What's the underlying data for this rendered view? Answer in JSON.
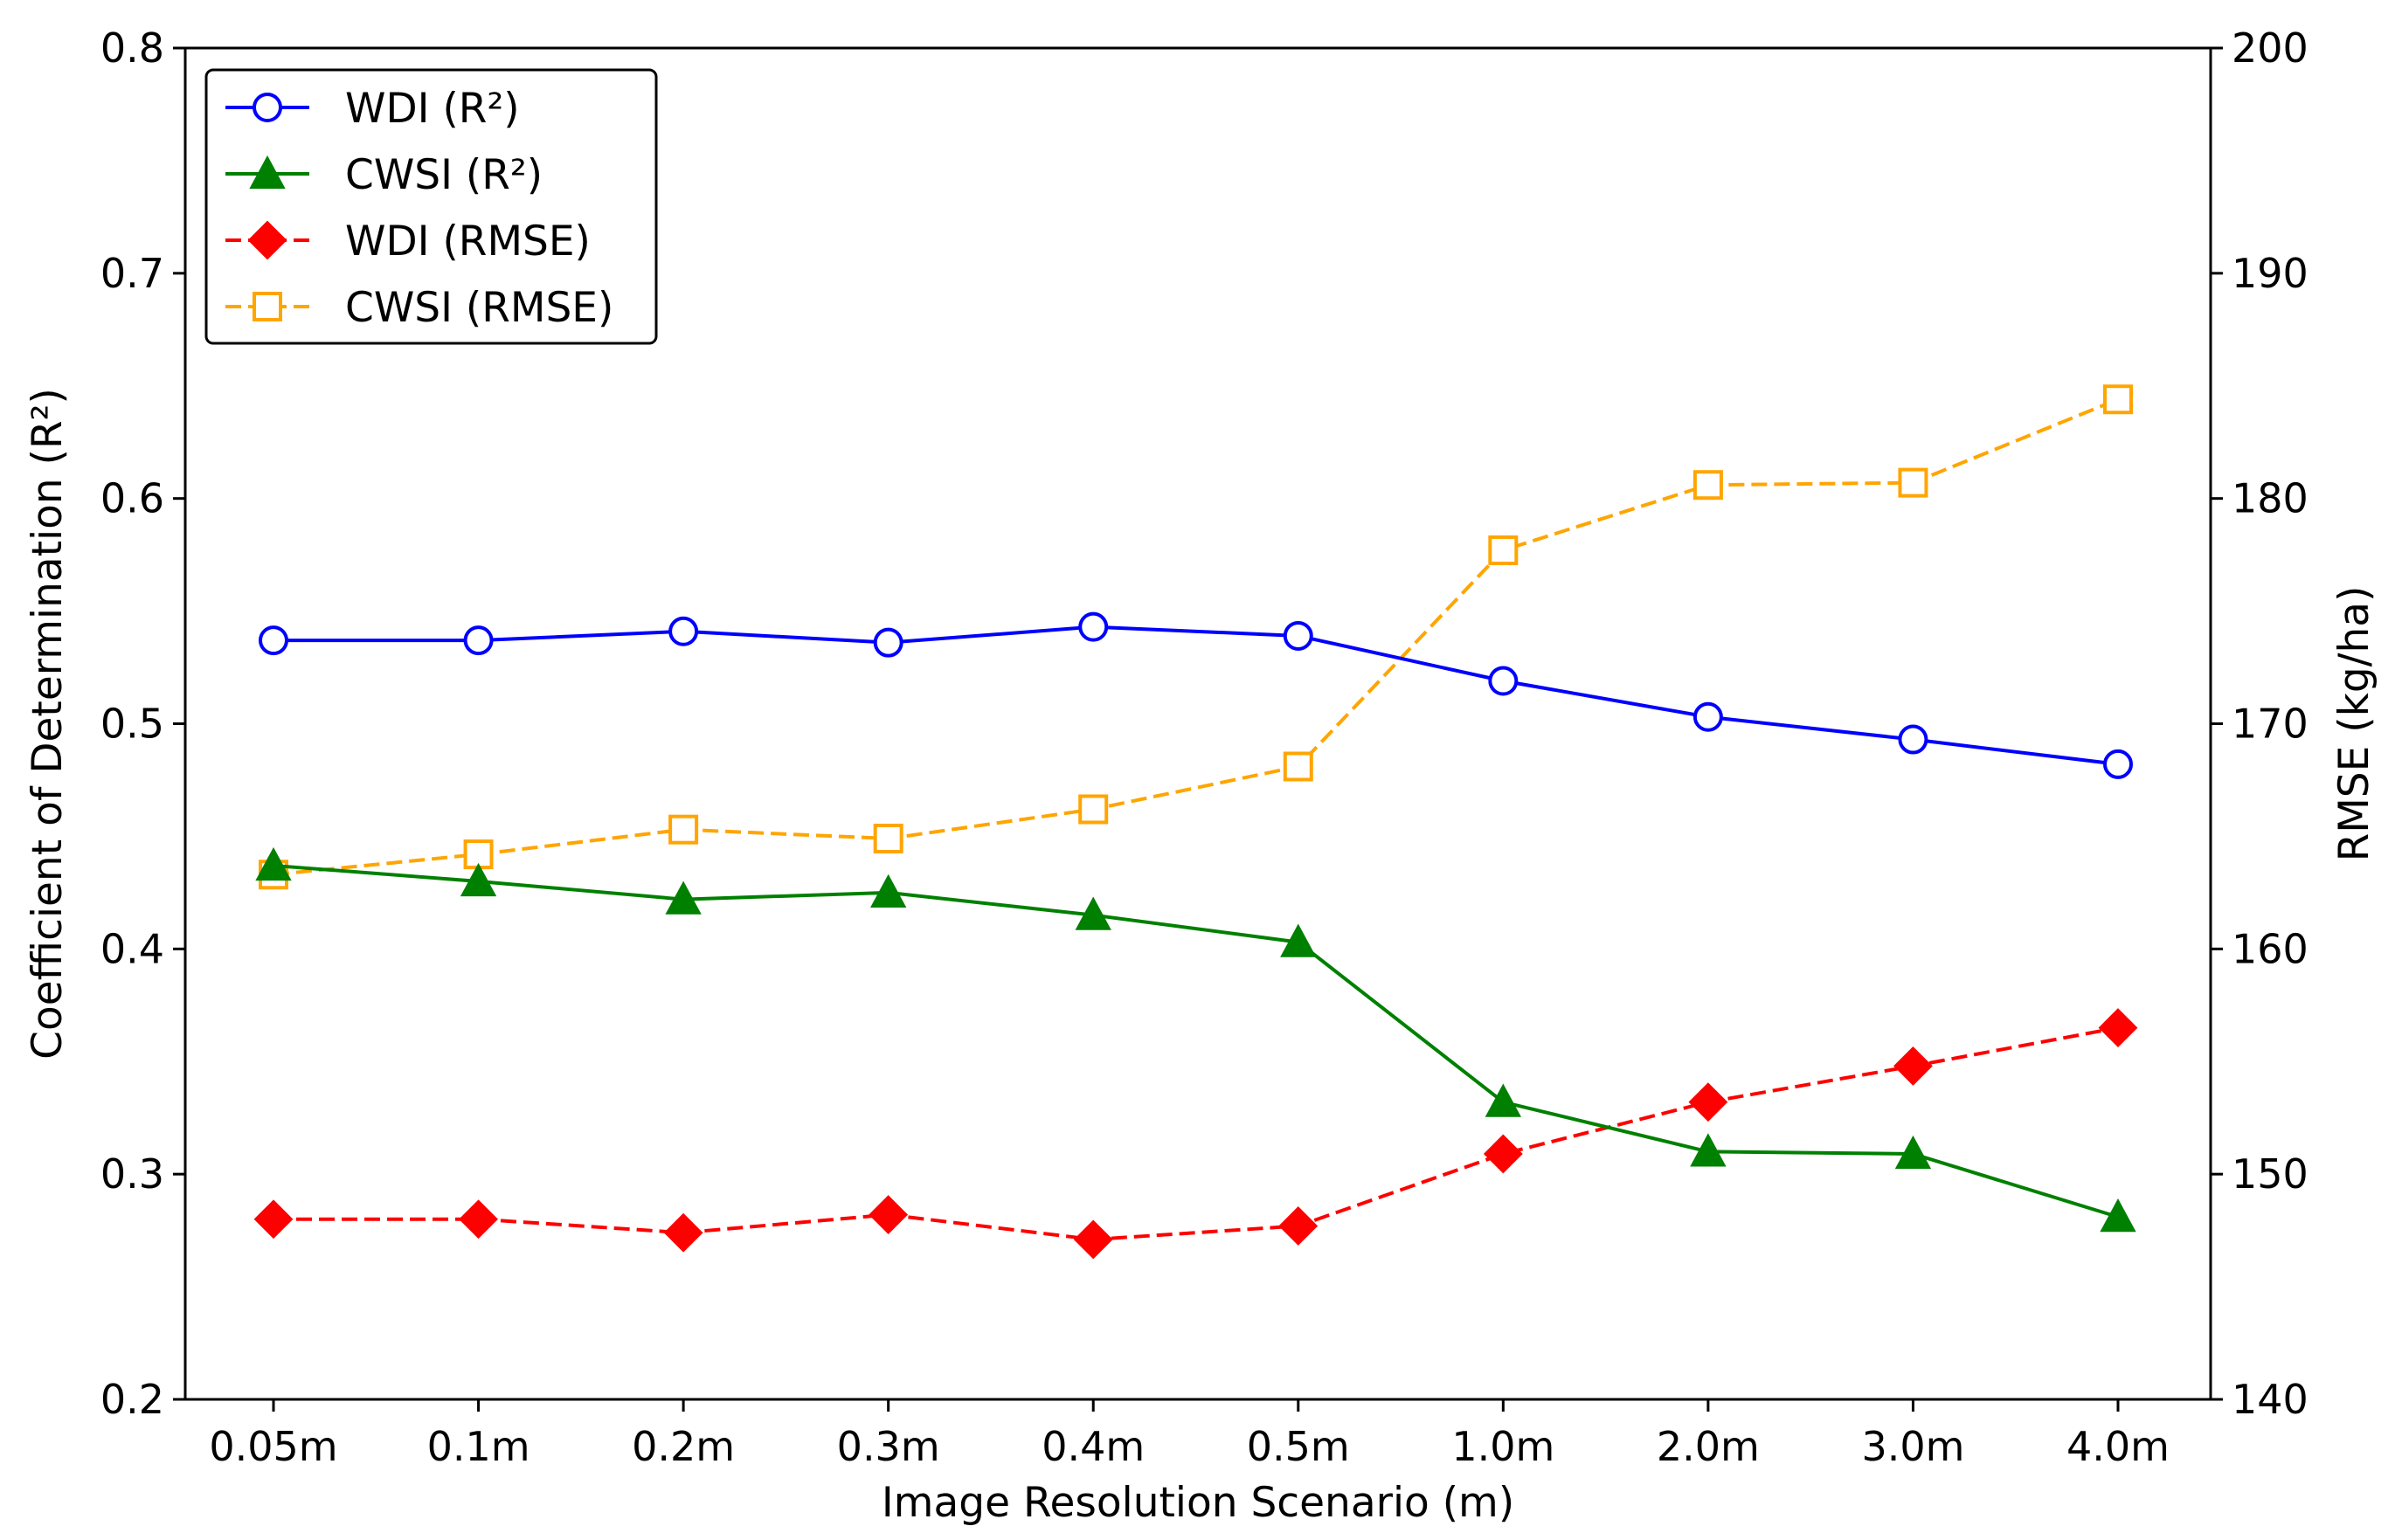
{
  "chart_data": {
    "type": "line",
    "categories": [
      "0.05m",
      "0.1m",
      "0.2m",
      "0.3m",
      "0.4m",
      "0.5m",
      "1.0m",
      "2.0m",
      "3.0m",
      "4.0m"
    ],
    "xlabel": "Image Resolution Scenario (m)",
    "ylabel_left": "Coefficient of Determination (R²)",
    "ylabel_right": "RMSE (kg/ha)",
    "ylim_left": [
      0.2,
      0.8
    ],
    "ylim_right": [
      140,
      200
    ],
    "yticks_left": [
      "0.2",
      "0.3",
      "0.4",
      "0.5",
      "0.6",
      "0.7",
      "0.8"
    ],
    "yticks_right": [
      "140",
      "150",
      "160",
      "170",
      "180",
      "190",
      "200"
    ],
    "grid": false,
    "legend_position": "top-left",
    "series": [
      {
        "name": "WDI (R²)",
        "axis": "left",
        "color": "#0000ff",
        "marker": "circle-open",
        "line_style": "solid",
        "values": [
          0.537,
          0.537,
          0.541,
          0.536,
          0.543,
          0.539,
          0.519,
          0.503,
          0.493,
          0.482
        ]
      },
      {
        "name": "CWSI (R²)",
        "axis": "left",
        "color": "#008000",
        "marker": "triangle-filled",
        "line_style": "solid",
        "values": [
          0.437,
          0.43,
          0.422,
          0.425,
          0.415,
          0.403,
          0.332,
          0.31,
          0.309,
          0.281
        ]
      },
      {
        "name": "WDI (RMSE)",
        "axis": "right",
        "color": "#ff0000",
        "marker": "diamond-filled",
        "line_style": "dashed",
        "values": [
          148.0,
          148.0,
          147.4,
          148.2,
          147.1,
          147.7,
          150.9,
          153.2,
          154.8,
          156.5
        ]
      },
      {
        "name": "CWSI (RMSE)",
        "axis": "right",
        "color": "#ffa500",
        "marker": "square-open",
        "line_style": "dashed",
        "values": [
          163.3,
          164.2,
          165.3,
          164.9,
          166.2,
          168.1,
          177.7,
          180.6,
          180.7,
          184.4
        ]
      }
    ]
  }
}
